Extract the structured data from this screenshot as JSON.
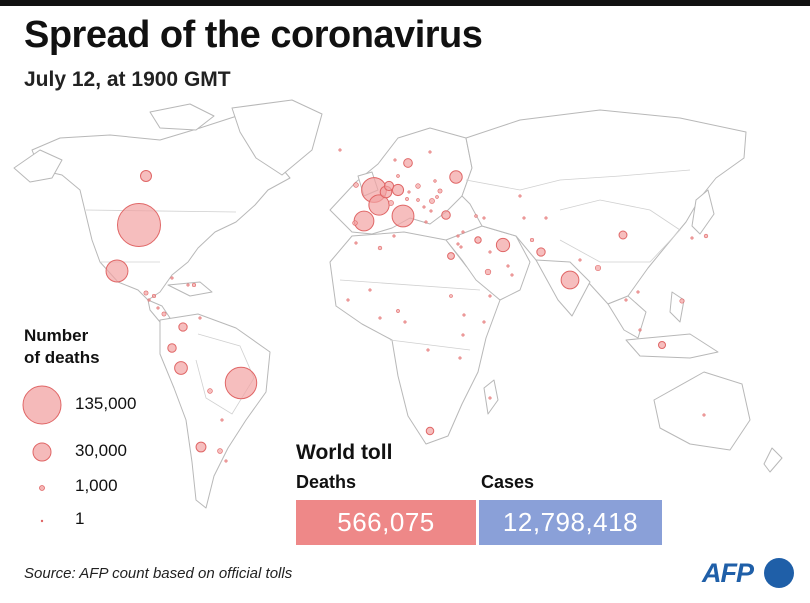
{
  "header": {
    "title": "Spread of the coronavirus",
    "subtitle": "July 12, at 1900 GMT"
  },
  "legend": {
    "title_line1": "Number",
    "title_line2": "of deaths",
    "items": [
      {
        "label": "135,000",
        "value": 135000
      },
      {
        "label": "30,000",
        "value": 30000
      },
      {
        "label": "1,000",
        "value": 1000
      },
      {
        "label": "1",
        "value": 1
      }
    ]
  },
  "world_toll": {
    "title": "World toll",
    "deaths_label": "Deaths",
    "deaths_value": "566,075",
    "cases_label": "Cases",
    "cases_value": "12,798,418"
  },
  "source": "Source: AFP count based on official tolls",
  "logo": "AFP",
  "colors": {
    "bubble_fill": "#f2a3a3",
    "bubble_stroke": "#e06666",
    "deaths_box": "#ee8888",
    "cases_box": "#8aa0d8",
    "land": "#ffffff",
    "borders": "#b8b8b8",
    "logo": "#1f5fa8"
  },
  "map_bubbles": [
    {
      "place": "United States",
      "deaths": 135000
    },
    {
      "place": "Brazil",
      "deaths": 72000
    },
    {
      "place": "United Kingdom",
      "deaths": 44800
    },
    {
      "place": "Mexico",
      "deaths": 35000
    },
    {
      "place": "Italy",
      "deaths": 34900
    },
    {
      "place": "France",
      "deaths": 30000
    },
    {
      "place": "Spain",
      "deaths": 28400
    },
    {
      "place": "India",
      "deaths": 23000
    },
    {
      "place": "Iran",
      "deaths": 12800
    },
    {
      "place": "Peru",
      "deaths": 11800
    },
    {
      "place": "Russia",
      "deaths": 11300
    },
    {
      "place": "Belgium",
      "deaths": 9780
    },
    {
      "place": "Germany",
      "deaths": 9070
    },
    {
      "place": "Canada",
      "deaths": 8800
    },
    {
      "place": "Chile",
      "deaths": 7100
    },
    {
      "place": "Colombia",
      "deaths": 5100
    },
    {
      "place": "South Africa",
      "deaths": 4100
    },
    {
      "place": "Turkey",
      "deaths": 5400
    },
    {
      "place": "Sweden",
      "deaths": 5500
    },
    {
      "place": "Netherlands",
      "deaths": 6100
    },
    {
      "place": "Ecuador",
      "deaths": 5200
    },
    {
      "place": "Pakistan",
      "deaths": 5100
    },
    {
      "place": "Egypt",
      "deaths": 3400
    },
    {
      "place": "China",
      "deaths": 4600
    },
    {
      "place": "Indonesia",
      "deaths": 3600
    },
    {
      "place": "Saudi Arabia",
      "deaths": 2300
    },
    {
      "place": "Bangladesh",
      "deaths": 2200
    },
    {
      "place": "Argentina",
      "deaths": 1800
    },
    {
      "place": "Bolivia",
      "deaths": 1700
    },
    {
      "place": "Poland",
      "deaths": 1600
    },
    {
      "place": "Romania",
      "deaths": 1900
    },
    {
      "place": "Ukraine",
      "deaths": 1300
    },
    {
      "place": "Switzerland",
      "deaths": 1960
    },
    {
      "place": "Ireland",
      "deaths": 1740
    },
    {
      "place": "Portugal",
      "deaths": 1660
    },
    {
      "place": "Iraq",
      "deaths": 3000
    },
    {
      "place": "Philippines",
      "deaths": 1400
    },
    {
      "place": "Guatemala",
      "deaths": 1300
    },
    {
      "place": "Panama",
      "deaths": 1300
    },
    {
      "place": "Dominican Republic",
      "deaths": 900
    },
    {
      "place": "Honduras",
      "deaths": 900
    },
    {
      "place": "Algeria",
      "deaths": 1000
    },
    {
      "place": "Nigeria",
      "deaths": 700
    },
    {
      "place": "Japan",
      "deaths": 980
    },
    {
      "place": "Austria",
      "deaths": 700
    },
    {
      "place": "Afghanistan",
      "deaths": 900
    },
    {
      "place": "Sudan",
      "deaths": 650
    },
    {
      "place": "Moldova",
      "deaths": 600
    },
    {
      "place": "Kazakhstan",
      "deaths": 400
    },
    {
      "place": "Denmark",
      "deaths": 600
    },
    {
      "place": "Hungary",
      "deaths": 590
    },
    {
      "place": "Finland",
      "deaths": 330
    },
    {
      "place": "Norway",
      "deaths": 250
    },
    {
      "place": "Czech Republic",
      "deaths": 350
    },
    {
      "place": "Serbia",
      "deaths": 400
    },
    {
      "place": "Belarus",
      "deaths": 480
    },
    {
      "place": "Morocco",
      "deaths": 240
    },
    {
      "place": "Cameroon",
      "deaths": 300
    },
    {
      "place": "Kenya",
      "deaths": 170
    },
    {
      "place": "Ghana",
      "deaths": 150
    },
    {
      "place": "Ethiopia",
      "deaths": 110
    },
    {
      "place": "Haiti",
      "deaths": 150
    },
    {
      "place": "Cuba",
      "deaths": 87
    },
    {
      "place": "Venezuela",
      "deaths": 80
    },
    {
      "place": "Uruguay",
      "deaths": 30
    },
    {
      "place": "Paraguay",
      "deaths": 25
    },
    {
      "place": "South Korea",
      "deaths": 290
    },
    {
      "place": "Yemen",
      "deaths": 390
    },
    {
      "place": "Oman",
      "deaths": 250
    },
    {
      "place": "United Arab Emirates",
      "deaths": 330
    },
    {
      "place": "Kuwait",
      "deaths": 400
    },
    {
      "place": "Israel",
      "deaths": 350
    },
    {
      "place": "Greece",
      "deaths": 190
    },
    {
      "place": "Bulgaria",
      "deaths": 300
    },
    {
      "place": "Nepal",
      "deaths": 40
    },
    {
      "place": "Malaysia",
      "deaths": 120
    },
    {
      "place": "Australia",
      "deaths": 110
    },
    {
      "place": "Madagascar",
      "deaths": 50
    },
    {
      "place": "Tunisia",
      "deaths": 50
    },
    {
      "place": "Senegal",
      "deaths": 150
    },
    {
      "place": "DR Congo",
      "deaths": 190
    },
    {
      "place": "Mali",
      "deaths": 110
    },
    {
      "place": "Somalia",
      "deaths": 90
    },
    {
      "place": "Tanzania",
      "deaths": 21
    },
    {
      "place": "Uzbekistan",
      "deaths": 50
    },
    {
      "place": "Kyrgyzstan",
      "deaths": 150
    },
    {
      "place": "Thailand",
      "deaths": 58
    },
    {
      "place": "Vietnam",
      "deaths": 1
    },
    {
      "place": "Costa Rica",
      "deaths": 40
    },
    {
      "place": "El Salvador",
      "deaths": 300
    },
    {
      "place": "Lebanon",
      "deaths": 36
    },
    {
      "place": "Syria",
      "deaths": 19
    },
    {
      "place": "Jordan",
      "deaths": 10
    },
    {
      "place": "Azerbaijan",
      "deaths": 300
    },
    {
      "place": "Armenia",
      "deaths": 550
    },
    {
      "place": "Iceland",
      "deaths": 10
    }
  ]
}
